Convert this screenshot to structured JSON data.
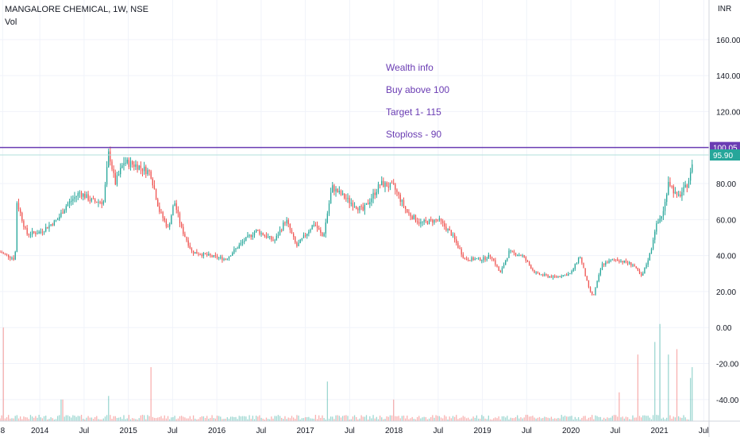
{
  "header": {
    "title": "MANGALORE CHEMICAL, 1W, NSE",
    "sub": "Vol"
  },
  "annotations": [
    "Wealth info",
    "Buy above 100",
    "Target 1- 115",
    "Stoploss - 90"
  ],
  "colors": {
    "up": "#26a69a",
    "down": "#ef5350",
    "hline": "#6a3cb3",
    "lastPrice": "#26a69a",
    "grid": "#f0f3fa",
    "axisText": "#131722"
  },
  "chart_data": {
    "type": "candlestick",
    "price_axis": {
      "currency": "INR",
      "ticks": [
        {
          "v": 160,
          "label": "160.00"
        },
        {
          "v": 140,
          "label": "140.00"
        },
        {
          "v": 120,
          "label": "120.00"
        },
        {
          "v": 80,
          "label": "80.00"
        },
        {
          "v": 60,
          "label": "60.00"
        },
        {
          "v": 40,
          "label": "40.00"
        },
        {
          "v": 20,
          "label": "20.00"
        },
        {
          "v": 0,
          "label": "0.00"
        },
        {
          "v": -20,
          "label": "-20.00"
        },
        {
          "v": -40,
          "label": "-40.00"
        }
      ],
      "ylim": [
        -52,
        182
      ]
    },
    "hline": {
      "value": 100.05,
      "label": "100.05"
    },
    "last_price": {
      "value": 95.9,
      "label": "95.90"
    },
    "time_axis": [
      {
        "label": "8",
        "year": 2013.58
      },
      {
        "label": "2014",
        "year": 2014.0
      },
      {
        "label": "Jul",
        "year": 2014.5
      },
      {
        "label": "2015",
        "year": 2015.0
      },
      {
        "label": "Jul",
        "year": 2015.5
      },
      {
        "label": "2016",
        "year": 2016.0
      },
      {
        "label": "Jul",
        "year": 2016.5
      },
      {
        "label": "2017",
        "year": 2017.0
      },
      {
        "label": "Jul",
        "year": 2017.5
      },
      {
        "label": "2018",
        "year": 2018.0
      },
      {
        "label": "Jul",
        "year": 2018.5
      },
      {
        "label": "2019",
        "year": 2019.0
      },
      {
        "label": "Jul",
        "year": 2019.5
      },
      {
        "label": "2020",
        "year": 2020.0
      },
      {
        "label": "Jul",
        "year": 2020.5
      },
      {
        "label": "2021",
        "year": 2021.0
      },
      {
        "label": "Jul",
        "year": 2021.5
      }
    ],
    "xlim": [
      2013.55,
      2021.56
    ],
    "price_path": [
      [
        2013.55,
        42
      ],
      [
        2013.72,
        38
      ],
      [
        2013.74,
        70
      ],
      [
        2013.85,
        52
      ],
      [
        2014.0,
        53
      ],
      [
        2014.2,
        60
      ],
      [
        2014.3,
        68
      ],
      [
        2014.45,
        75
      ],
      [
        2014.6,
        70
      ],
      [
        2014.72,
        70
      ],
      [
        2014.78,
        98
      ],
      [
        2014.85,
        80
      ],
      [
        2014.95,
        92
      ],
      [
        2015.1,
        90
      ],
      [
        2015.25,
        86
      ],
      [
        2015.35,
        65
      ],
      [
        2015.45,
        55
      ],
      [
        2015.52,
        70
      ],
      [
        2015.6,
        55
      ],
      [
        2015.72,
        42
      ],
      [
        2015.9,
        40
      ],
      [
        2016.1,
        38
      ],
      [
        2016.3,
        48
      ],
      [
        2016.45,
        54
      ],
      [
        2016.65,
        48
      ],
      [
        2016.78,
        60
      ],
      [
        2016.9,
        45
      ],
      [
        2017.1,
        58
      ],
      [
        2017.2,
        50
      ],
      [
        2017.3,
        78
      ],
      [
        2017.5,
        70
      ],
      [
        2017.65,
        65
      ],
      [
        2017.85,
        80
      ],
      [
        2018.0,
        78
      ],
      [
        2018.15,
        64
      ],
      [
        2018.3,
        58
      ],
      [
        2018.5,
        60
      ],
      [
        2018.65,
        52
      ],
      [
        2018.8,
        38
      ],
      [
        2019.0,
        38
      ],
      [
        2019.1,
        40
      ],
      [
        2019.2,
        30
      ],
      [
        2019.3,
        42
      ],
      [
        2019.45,
        40
      ],
      [
        2019.6,
        30
      ],
      [
        2019.8,
        28
      ],
      [
        2020.0,
        30
      ],
      [
        2020.1,
        40
      ],
      [
        2020.2,
        22
      ],
      [
        2020.25,
        17
      ],
      [
        2020.35,
        35
      ],
      [
        2020.5,
        38
      ],
      [
        2020.7,
        35
      ],
      [
        2020.8,
        28
      ],
      [
        2020.9,
        42
      ],
      [
        2020.95,
        55
      ],
      [
        2021.05,
        65
      ],
      [
        2021.1,
        82
      ],
      [
        2021.2,
        72
      ],
      [
        2021.3,
        78
      ],
      [
        2021.35,
        85
      ],
      [
        2021.38,
        95.9
      ]
    ],
    "volume_spikes": [
      [
        2013.59,
        0
      ],
      [
        2014.25,
        -40
      ],
      [
        2014.78,
        -38
      ],
      [
        2015.25,
        -22
      ],
      [
        2017.25,
        -30
      ],
      [
        2018.0,
        -40
      ],
      [
        2020.55,
        -36
      ],
      [
        2020.75,
        -15
      ],
      [
        2020.95,
        -8
      ],
      [
        2021.0,
        2
      ],
      [
        2021.1,
        -15
      ],
      [
        2021.2,
        -12
      ],
      [
        2021.35,
        -28
      ],
      [
        2021.38,
        -22
      ]
    ]
  }
}
